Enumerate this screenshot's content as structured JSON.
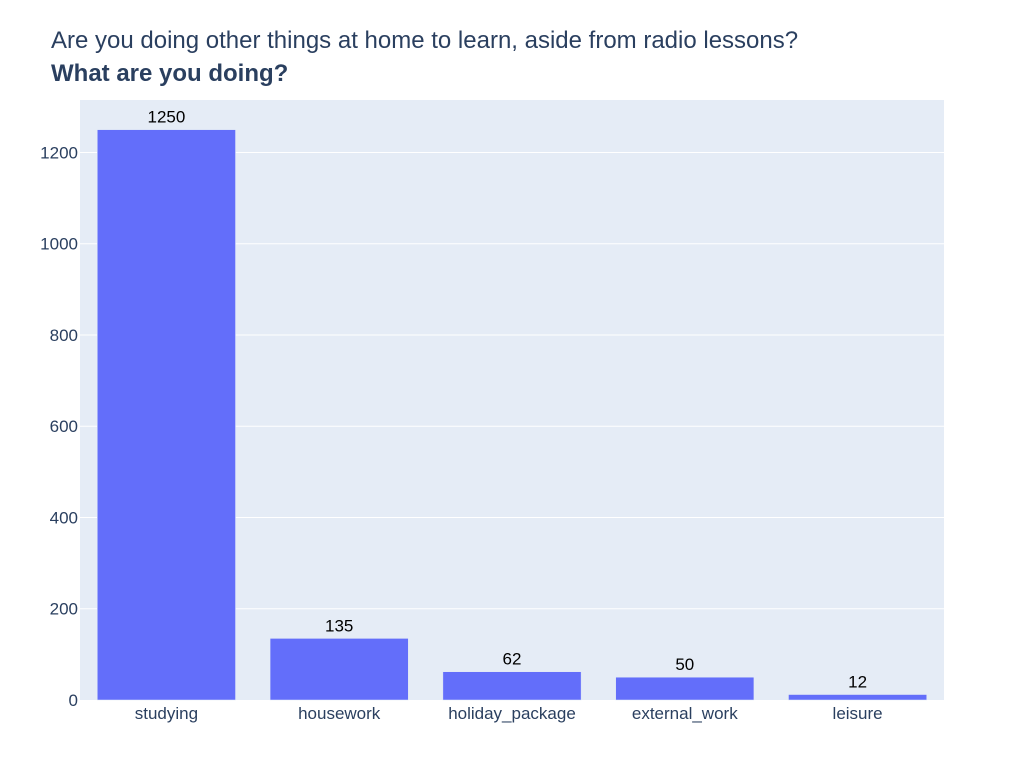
{
  "title": {
    "line1": "Are you doing other things at home to learn, aside from radio lessons?",
    "line2": "What are you doing?"
  },
  "colors": {
    "plot_background": "#e5ecf6",
    "grid": "#ffffff",
    "bar": "#636efa",
    "text": "#2a3f5f"
  },
  "chart_data": {
    "type": "bar",
    "title": "Are you doing other things at home to learn, aside from radio lessons? What are you doing?",
    "xlabel": "",
    "ylabel": "",
    "categories": [
      "studying",
      "housework",
      "holiday_package",
      "external_work",
      "leisure"
    ],
    "values": [
      1250,
      135,
      62,
      50,
      12
    ],
    "data_labels": [
      "1250",
      "135",
      "62",
      "50",
      "12"
    ],
    "ylim": [
      0,
      1315
    ],
    "yticks": [
      0,
      200,
      400,
      600,
      800,
      1000,
      1200
    ],
    "grid": true,
    "legend": "none"
  }
}
